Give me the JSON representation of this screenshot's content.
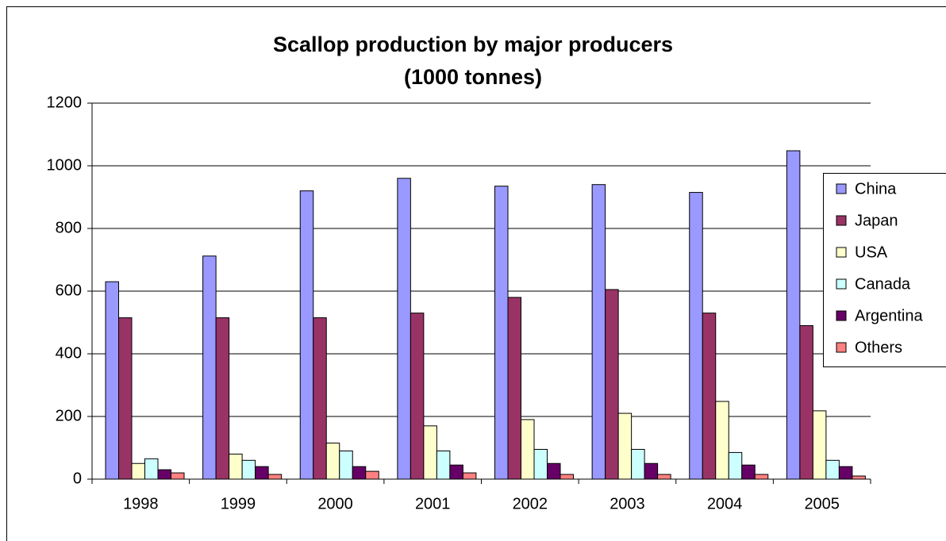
{
  "chart_data": {
    "type": "bar",
    "title": "Scallop production by major producers",
    "subtitle": "(1000 tonnes)",
    "categories": [
      "1998",
      "1999",
      "2000",
      "2001",
      "2002",
      "2003",
      "2004",
      "2005"
    ],
    "series": [
      {
        "name": "China",
        "color": "#9999ff",
        "values": [
          630,
          712,
          920,
          960,
          935,
          940,
          915,
          1048
        ]
      },
      {
        "name": "Japan",
        "color": "#993366",
        "values": [
          515,
          515,
          515,
          530,
          580,
          605,
          530,
          490
        ]
      },
      {
        "name": "USA",
        "color": "#ffffcc",
        "values": [
          50,
          80,
          115,
          170,
          190,
          210,
          248,
          218
        ]
      },
      {
        "name": "Canada",
        "color": "#ccffff",
        "values": [
          65,
          60,
          90,
          90,
          95,
          95,
          85,
          60
        ]
      },
      {
        "name": "Argentina",
        "color": "#660066",
        "values": [
          30,
          40,
          40,
          45,
          50,
          50,
          45,
          40
        ]
      },
      {
        "name": "Others",
        "color": "#ff8080",
        "values": [
          20,
          15,
          25,
          20,
          15,
          15,
          15,
          10
        ]
      }
    ],
    "ylim": [
      0,
      1200
    ],
    "yticks": [
      0,
      200,
      400,
      600,
      800,
      1000,
      1200
    ],
    "grid": true,
    "legend": "right"
  }
}
